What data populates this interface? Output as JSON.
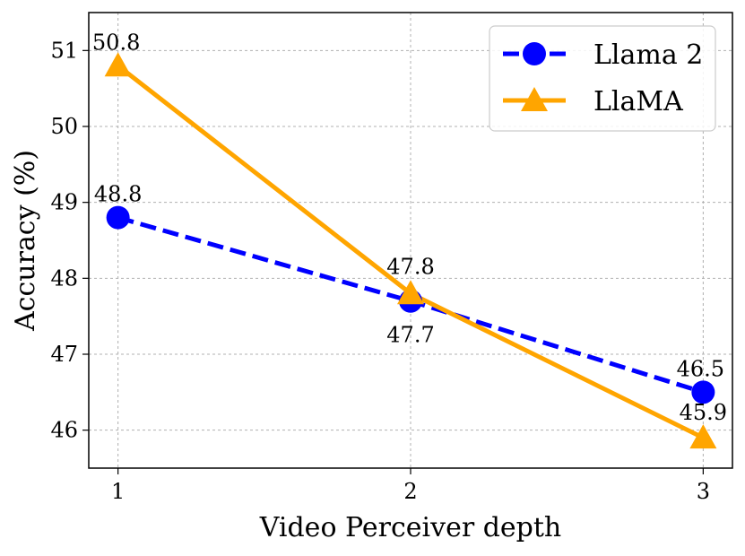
{
  "chart_data": {
    "type": "line",
    "title": "",
    "xlabel": "Video Perceiver depth",
    "ylabel": "Accuracy (%)",
    "x": [
      1,
      2,
      3
    ],
    "xticks": [
      "1",
      "2",
      "3"
    ],
    "yticks": [
      "46",
      "47",
      "48",
      "49",
      "50",
      "51"
    ],
    "xlim": [
      0.9,
      3.1
    ],
    "ylim": [
      45.5,
      51.5
    ],
    "grid": true,
    "legend_position": "top-right",
    "series": [
      {
        "name": "Llama 2",
        "values": [
          48.8,
          47.7,
          46.5
        ],
        "labels": [
          "48.8",
          "47.7",
          "46.5"
        ],
        "color": "#0000ff",
        "line_style": "dashed",
        "marker": "circle"
      },
      {
        "name": "LlaMA",
        "values": [
          50.8,
          47.8,
          45.9
        ],
        "labels": [
          "50.8",
          "47.8",
          "45.9"
        ],
        "color": "#ffa500",
        "line_style": "solid",
        "marker": "triangle"
      }
    ]
  }
}
